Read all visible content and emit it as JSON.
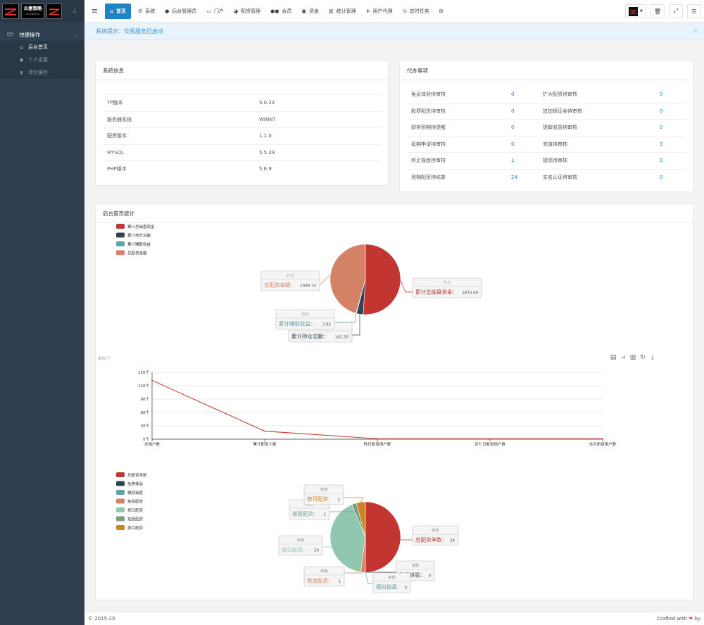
{
  "brand": {
    "logo_text": "众惠策略",
    "logo_sub": "ZHONGHUI"
  },
  "sidebar": {
    "group_title": "快捷操作",
    "items": [
      {
        "label": "后台首页",
        "icon": "home-icon",
        "active": true
      },
      {
        "label": "个人设置",
        "icon": "user-icon",
        "active": false
      },
      {
        "label": "清空缓存",
        "icon": "trash-icon",
        "active": false
      }
    ]
  },
  "topnav": {
    "items": [
      {
        "label": "首页",
        "icon": "home-icon",
        "active": true
      },
      {
        "label": "系统",
        "icon": "gear-icon"
      },
      {
        "label": "后台管理员",
        "icon": "user-icon"
      },
      {
        "label": "门户",
        "icon": "portal-icon"
      },
      {
        "label": "配资管理",
        "icon": "pie-icon"
      },
      {
        "label": "会员",
        "icon": "users-icon"
      },
      {
        "label": "资金",
        "icon": "money-icon"
      },
      {
        "label": "统计管理",
        "icon": "bar-chart-icon"
      },
      {
        "label": "用户代理",
        "icon": "sitemap-icon"
      },
      {
        "label": "定时任务",
        "icon": "clock-icon"
      }
    ]
  },
  "notice": {
    "text": "系统提示：交易服务已启动"
  },
  "system_info": {
    "title": "系统信息",
    "rows": [
      {
        "key": "TP版本",
        "value": "5.0.23"
      },
      {
        "key": "服务器系统",
        "value": "WINNT"
      },
      {
        "key": "配资版本",
        "value": "1.1.0"
      },
      {
        "key": "MYSQL",
        "value": "5.5.29"
      },
      {
        "key": "PHP版本",
        "value": "5.6.9"
      }
    ]
  },
  "todo": {
    "title": "代办事项",
    "rows": [
      {
        "l1": "免息体验待审核",
        "v1": "0",
        "l2": "扩大配资待审核",
        "v2": "0"
      },
      {
        "l1": "股票配资待审核",
        "v1": "0",
        "l2": "追加保证金待审核",
        "v2": "0"
      },
      {
        "l1": "即将到期待提醒",
        "v1": "0",
        "l2": "提取收益待审核",
        "v2": "0"
      },
      {
        "l1": "延期申请待审核",
        "v1": "0",
        "l2": "充值待审核",
        "v2": "3"
      },
      {
        "l1": "终止操盘待审核",
        "v1": "1",
        "l2": "提现待审核",
        "v2": "0"
      },
      {
        "l1": "到期配资待结算",
        "v1": "24",
        "l2": "实名认证待审核",
        "v2": "0"
      }
    ]
  },
  "stats": {
    "title": "后台首页统计"
  },
  "chart_data": [
    {
      "type": "pie",
      "legend": [
        "累计总操盘资金",
        "累计持仓总额",
        "累计赚取收益",
        "总配资金额"
      ],
      "unit": "万元",
      "colors": [
        "#c23531",
        "#2f4554",
        "#61a0a8",
        "#d48265"
      ],
      "values": [
        1674.49,
        102.35,
        7.02,
        1499.74
      ],
      "legend_placement": "top-left"
    },
    {
      "type": "line",
      "unit_label": "单位/个",
      "categories": [
        "总用户数",
        "累计配资人数",
        "昨日新增用户数",
        "近七日新增用户数",
        "本月新增用户数"
      ],
      "values": [
        132,
        18,
        1,
        1,
        1
      ],
      "ylim": [
        0,
        150
      ],
      "yticks": [
        "0个",
        "30个",
        "60个",
        "90个",
        "120个",
        "150个"
      ],
      "grid": true,
      "color": "#c23531"
    },
    {
      "type": "pie",
      "legend": [
        "总配资单数",
        "免费体验",
        "模拟操盘",
        "免息配资",
        "按日配资",
        "按周配资",
        "按月配资"
      ],
      "unit": "单数",
      "colors": [
        "#c23531",
        "#2f4554",
        "#61a0a8",
        "#d48265",
        "#91c7ae",
        "#749f83",
        "#ca8622"
      ],
      "values": [
        24,
        0,
        0,
        1,
        20,
        1,
        2
      ],
      "legend_placement": "top-left"
    }
  ],
  "footer": {
    "copyright": "© 2015-20",
    "crafted": "Crafted with",
    "heart": "❤",
    "by": "by"
  }
}
